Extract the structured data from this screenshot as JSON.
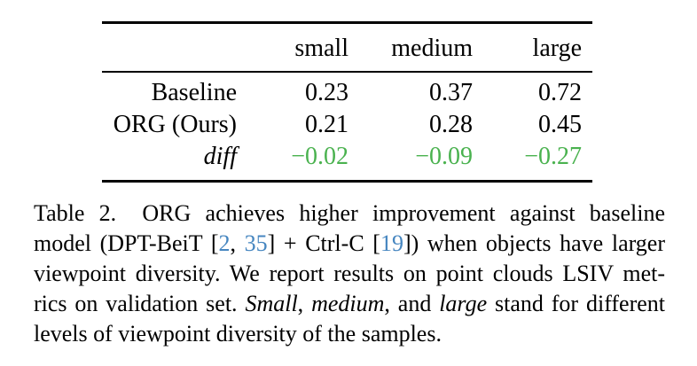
{
  "table": {
    "columns": [
      "small",
      "medium",
      "large"
    ],
    "rows": [
      {
        "label": "Baseline",
        "values": [
          "0.23",
          "0.37",
          "0.72"
        ]
      },
      {
        "label": "ORG (Ours)",
        "values": [
          "0.21",
          "0.28",
          "0.45"
        ]
      },
      {
        "label": "diff",
        "values": [
          "−0.02",
          "−0.09",
          "−0.27"
        ]
      }
    ]
  },
  "caption": {
    "lines": [
      [
        {
          "t": "Table 2.  ORG achieves higher improvement against baseline"
        }
      ],
      [
        {
          "t": "model (DPT-BeiT ["
        },
        {
          "t": "2"
        },
        {
          "t": ", "
        },
        {
          "t": "35"
        },
        {
          "t": "] + Ctrl-C ["
        },
        {
          "t": "19"
        },
        {
          "t": "]) when objects have larger"
        }
      ],
      [
        {
          "t": "viewpoint diversity. We report results on point clouds LSIV met-"
        }
      ],
      [
        {
          "t": "rics on validation set. "
        },
        {
          "t": "Small"
        },
        {
          "t": ", "
        },
        {
          "t": "medium"
        },
        {
          "t": ", and "
        },
        {
          "t": "large"
        },
        {
          "t": " stand for different"
        }
      ],
      [
        {
          "t": "levels of viewpoint diversity of the samples."
        }
      ]
    ]
  },
  "colors": {
    "diff_green": "#4ab24f",
    "citation_blue": "#4686c0",
    "text": "#000000",
    "background": "#ffffff"
  }
}
